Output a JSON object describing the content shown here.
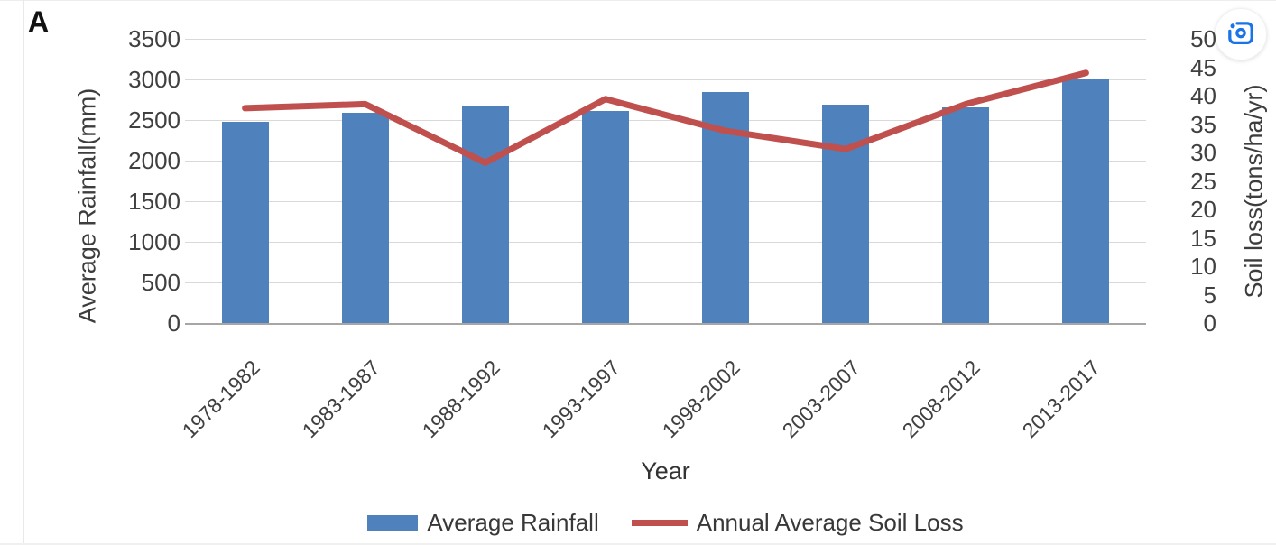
{
  "panel_label": "A",
  "colors": {
    "bar_blue": "#4f81bd",
    "line_red": "#c0504d",
    "grid": "#d9d9d9",
    "axis_baseline": "#a6a6a6",
    "text": "#404040",
    "lens_blue": "#1a73e8"
  },
  "chart_data": {
    "type": "combo-bar-line",
    "categories": [
      "1978-1982",
      "1983-1987",
      "1988-1992",
      "1993-1997",
      "1998-2002",
      "2003-2007",
      "2008-2012",
      "2013-2017"
    ],
    "series": [
      {
        "name": "Average Rainfall",
        "type": "bar",
        "axis": "left",
        "color": "#4f81bd",
        "values": [
          2480,
          2590,
          2670,
          2610,
          2850,
          2690,
          2660,
          3000
        ]
      },
      {
        "name": "Annual Average Soil Loss",
        "type": "line",
        "axis": "right",
        "color": "#c0504d",
        "values": [
          37.8,
          38.5,
          28.2,
          39.4,
          33.8,
          30.6,
          38.5,
          44
        ]
      }
    ],
    "title": "",
    "xlabel": "Year",
    "left_axis": {
      "label": "Average Rainfall(mm)",
      "min": 0,
      "max": 3500,
      "step": 500,
      "ticks": [
        "3500",
        "3000",
        "2500",
        "2000",
        "1500",
        "1000",
        "500",
        "0"
      ]
    },
    "right_axis": {
      "label": "Soil loss(tons/ha/yr)",
      "min": 0,
      "max": 50,
      "step": 5,
      "ticks": [
        "50",
        "45",
        "40",
        "35",
        "30",
        "25",
        "20",
        "15",
        "10",
        "5",
        "0"
      ]
    },
    "grid": true,
    "legend_position": "bottom"
  }
}
